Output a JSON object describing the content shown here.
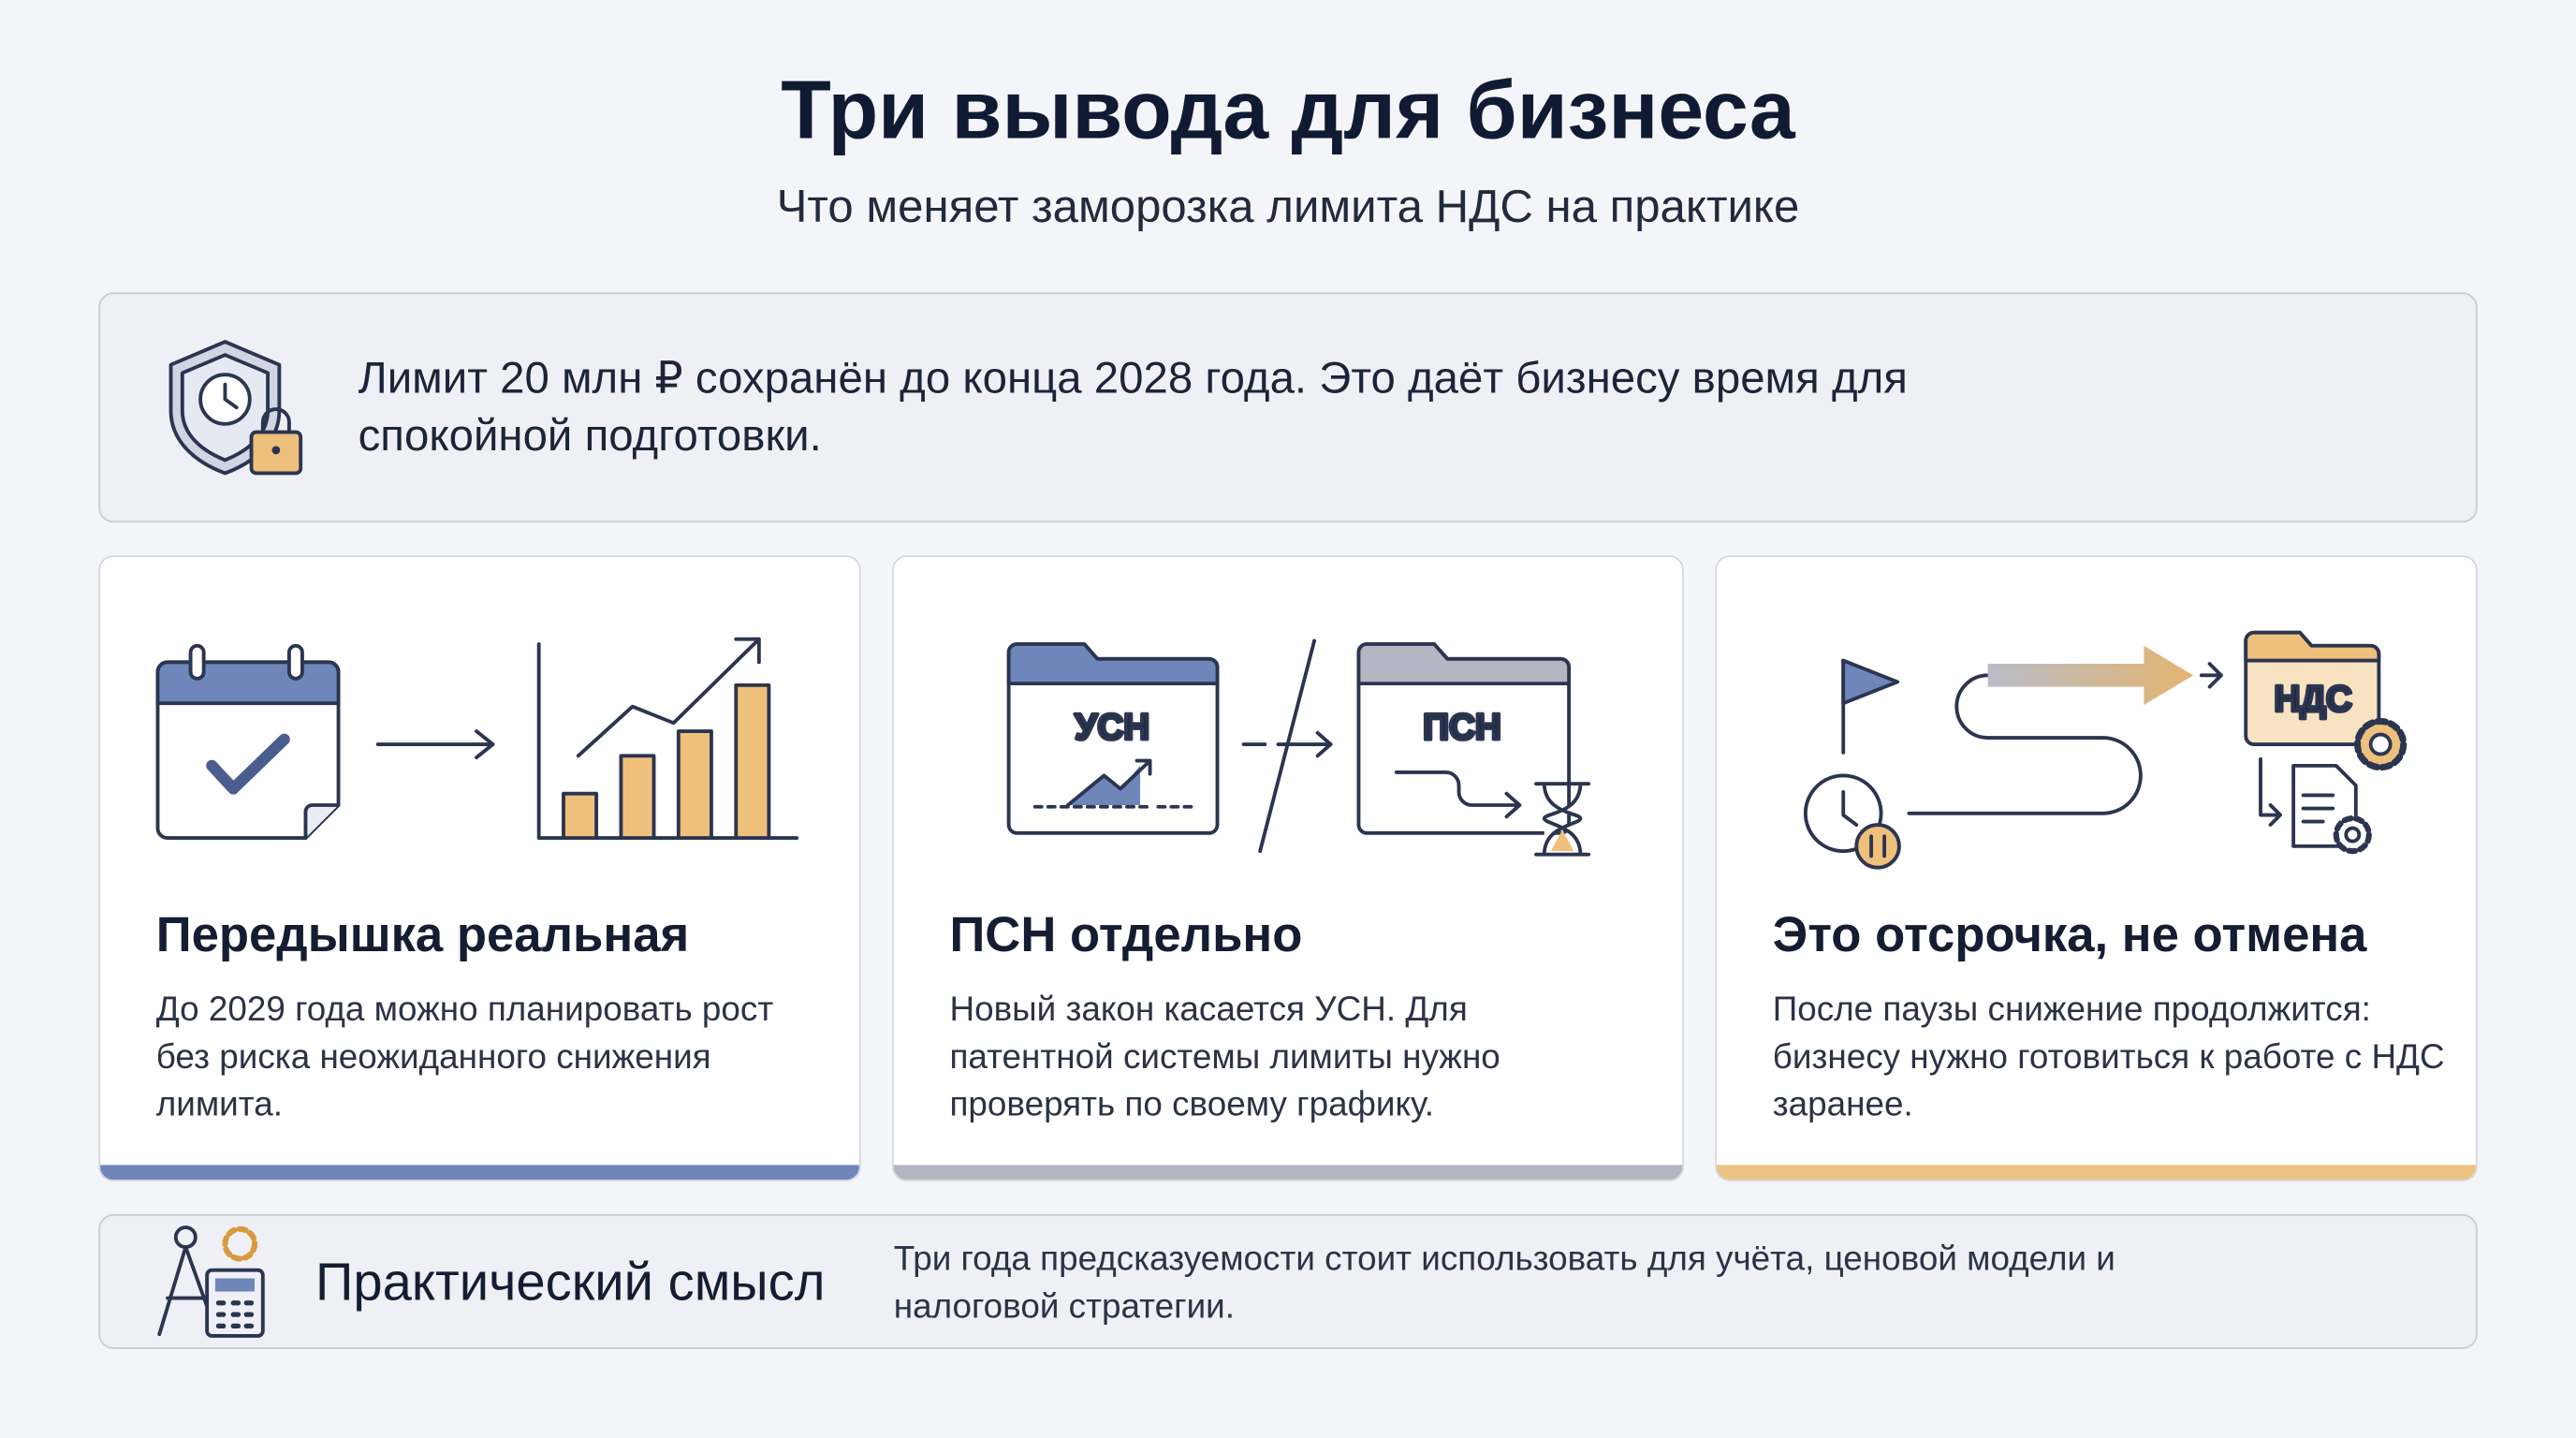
{
  "header": {
    "title": "Три вывода для бизнеса",
    "subtitle": "Что меняет заморозка лимита НДС на практике"
  },
  "banner": {
    "text": "Лимит 20 млн ₽ сохранён до конца 2028 года. Это даёт бизнесу время для спокойной подготовки."
  },
  "cards": [
    {
      "title": "Передышка реальная",
      "text": "До 2029 года можно планировать рост без риска неожиданного снижения лимита."
    },
    {
      "title": "ПСН отдельно",
      "text": "Новый закон касается УСН. Для патентной системы лимиты нужно проверять по своему графику.",
      "icon_labels": [
        "УСН",
        "ПСН"
      ]
    },
    {
      "title": "Это отсрочка, не отмена",
      "text": "После паузы снижение продолжится: бизнесу нужно готовиться к работе с НДС заранее.",
      "icon_labels": [
        "НДС"
      ]
    }
  ],
  "footer": {
    "title": "Практический смысл",
    "text": "Три года предсказуемости стоит использовать для учёта, ценовой модели и налоговой стратегии."
  }
}
